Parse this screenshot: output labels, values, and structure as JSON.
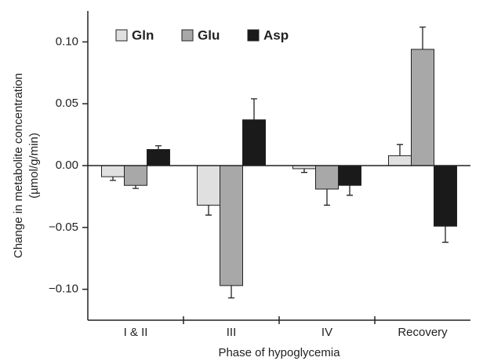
{
  "chart_data": {
    "type": "bar",
    "ylabel": "Change in metabolite concentration",
    "yunit": "(µmol/g/min)",
    "xlabel": "Phase of hypoglycemia",
    "categories": [
      "I & II",
      "III",
      "IV",
      "Recovery"
    ],
    "series": [
      {
        "name": "Gln",
        "color": "#e0e0e0",
        "values": [
          -0.009,
          -0.032,
          -0.0025,
          0.008
        ],
        "errors": [
          0.003,
          0.008,
          0.003,
          0.009
        ]
      },
      {
        "name": "Glu",
        "color": "#a8a8a8",
        "values": [
          -0.016,
          -0.097,
          -0.019,
          0.094
        ],
        "errors": [
          0.0025,
          0.01,
          0.013,
          0.018
        ]
      },
      {
        "name": "Asp",
        "color": "#1a1a1a",
        "values": [
          0.013,
          0.037,
          -0.016,
          -0.049
        ],
        "errors": [
          0.003,
          0.017,
          0.008,
          0.013
        ]
      }
    ],
    "ylim": [
      -0.125,
      0.125
    ],
    "yticks": [
      {
        "value": 0.1,
        "label": "0.10"
      },
      {
        "value": 0.05,
        "label": "0.05"
      },
      {
        "value": 0,
        "label": "0.00"
      },
      {
        "value": -0.05,
        "label": "−0.05"
      },
      {
        "value": -0.1,
        "label": "−0.10"
      }
    ],
    "legend": "top-left"
  }
}
